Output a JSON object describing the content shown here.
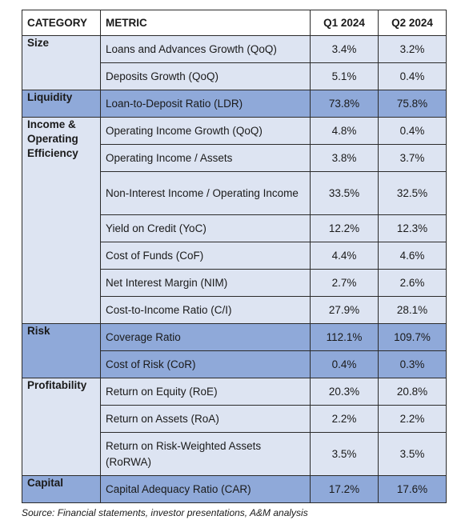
{
  "table": {
    "headers": {
      "category": "CATEGORY",
      "metric": "METRIC",
      "q1": "Q1 2024",
      "q2": "Q2 2024"
    },
    "groups": [
      {
        "category": "Size",
        "rows": [
          {
            "metric": "Loans and Advances Growth (QoQ)",
            "q1": "3.4%",
            "q2": "3.2%"
          },
          {
            "metric": "Deposits Growth (QoQ)",
            "q1": "5.1%",
            "q2": "0.4%"
          }
        ]
      },
      {
        "category": "Liquidity",
        "rows": [
          {
            "metric": "Loan-to-Deposit Ratio (LDR)",
            "q1": "73.8%",
            "q2": "75.8%"
          }
        ]
      },
      {
        "category": "Income & Operating Efficiency",
        "rows": [
          {
            "metric": "Operating Income Growth (QoQ)",
            "q1": "4.8%",
            "q2": "0.4%"
          },
          {
            "metric": "Operating Income / Assets",
            "q1": "3.8%",
            "q2": "3.7%"
          },
          {
            "metric": "Non-Interest Income / Operating Income",
            "q1": "33.5%",
            "q2": "32.5%"
          },
          {
            "metric": "Yield on Credit (YoC)",
            "q1": "12.2%",
            "q2": "12.3%"
          },
          {
            "metric": "Cost of Funds (CoF)",
            "q1": "4.4%",
            "q2": "4.6%"
          },
          {
            "metric": "Net Interest Margin (NIM)",
            "q1": "2.7%",
            "q2": "2.6%"
          },
          {
            "metric": "Cost-to-Income Ratio (C/I)",
            "q1": "27.9%",
            "q2": "28.1%"
          }
        ]
      },
      {
        "category": "Risk",
        "rows": [
          {
            "metric": "Coverage Ratio",
            "q1": "112.1%",
            "q2": "109.7%"
          },
          {
            "metric": "Cost of Risk (CoR)",
            "q1": "0.4%",
            "q2": "0.3%"
          }
        ]
      },
      {
        "category": "Profitability",
        "rows": [
          {
            "metric": "Return on Equity (RoE)",
            "q1": "20.3%",
            "q2": "20.8%"
          },
          {
            "metric": "Return on Assets (RoA)",
            "q1": "2.2%",
            "q2": "2.2%"
          },
          {
            "metric": "Return on Risk-Weighted Assets (RoRWA)",
            "q1": "3.5%",
            "q2": "3.5%"
          }
        ]
      },
      {
        "category": "Capital",
        "rows": [
          {
            "metric": "Capital Adequacy Ratio (CAR)",
            "q1": "17.2%",
            "q2": "17.6%"
          }
        ]
      }
    ]
  },
  "source": "Source: Financial statements, investor presentations, A&M analysis",
  "colors": {
    "light_band": "#dde4f2",
    "dark_band": "#8fa9d9",
    "border": "#2b2b2b"
  }
}
